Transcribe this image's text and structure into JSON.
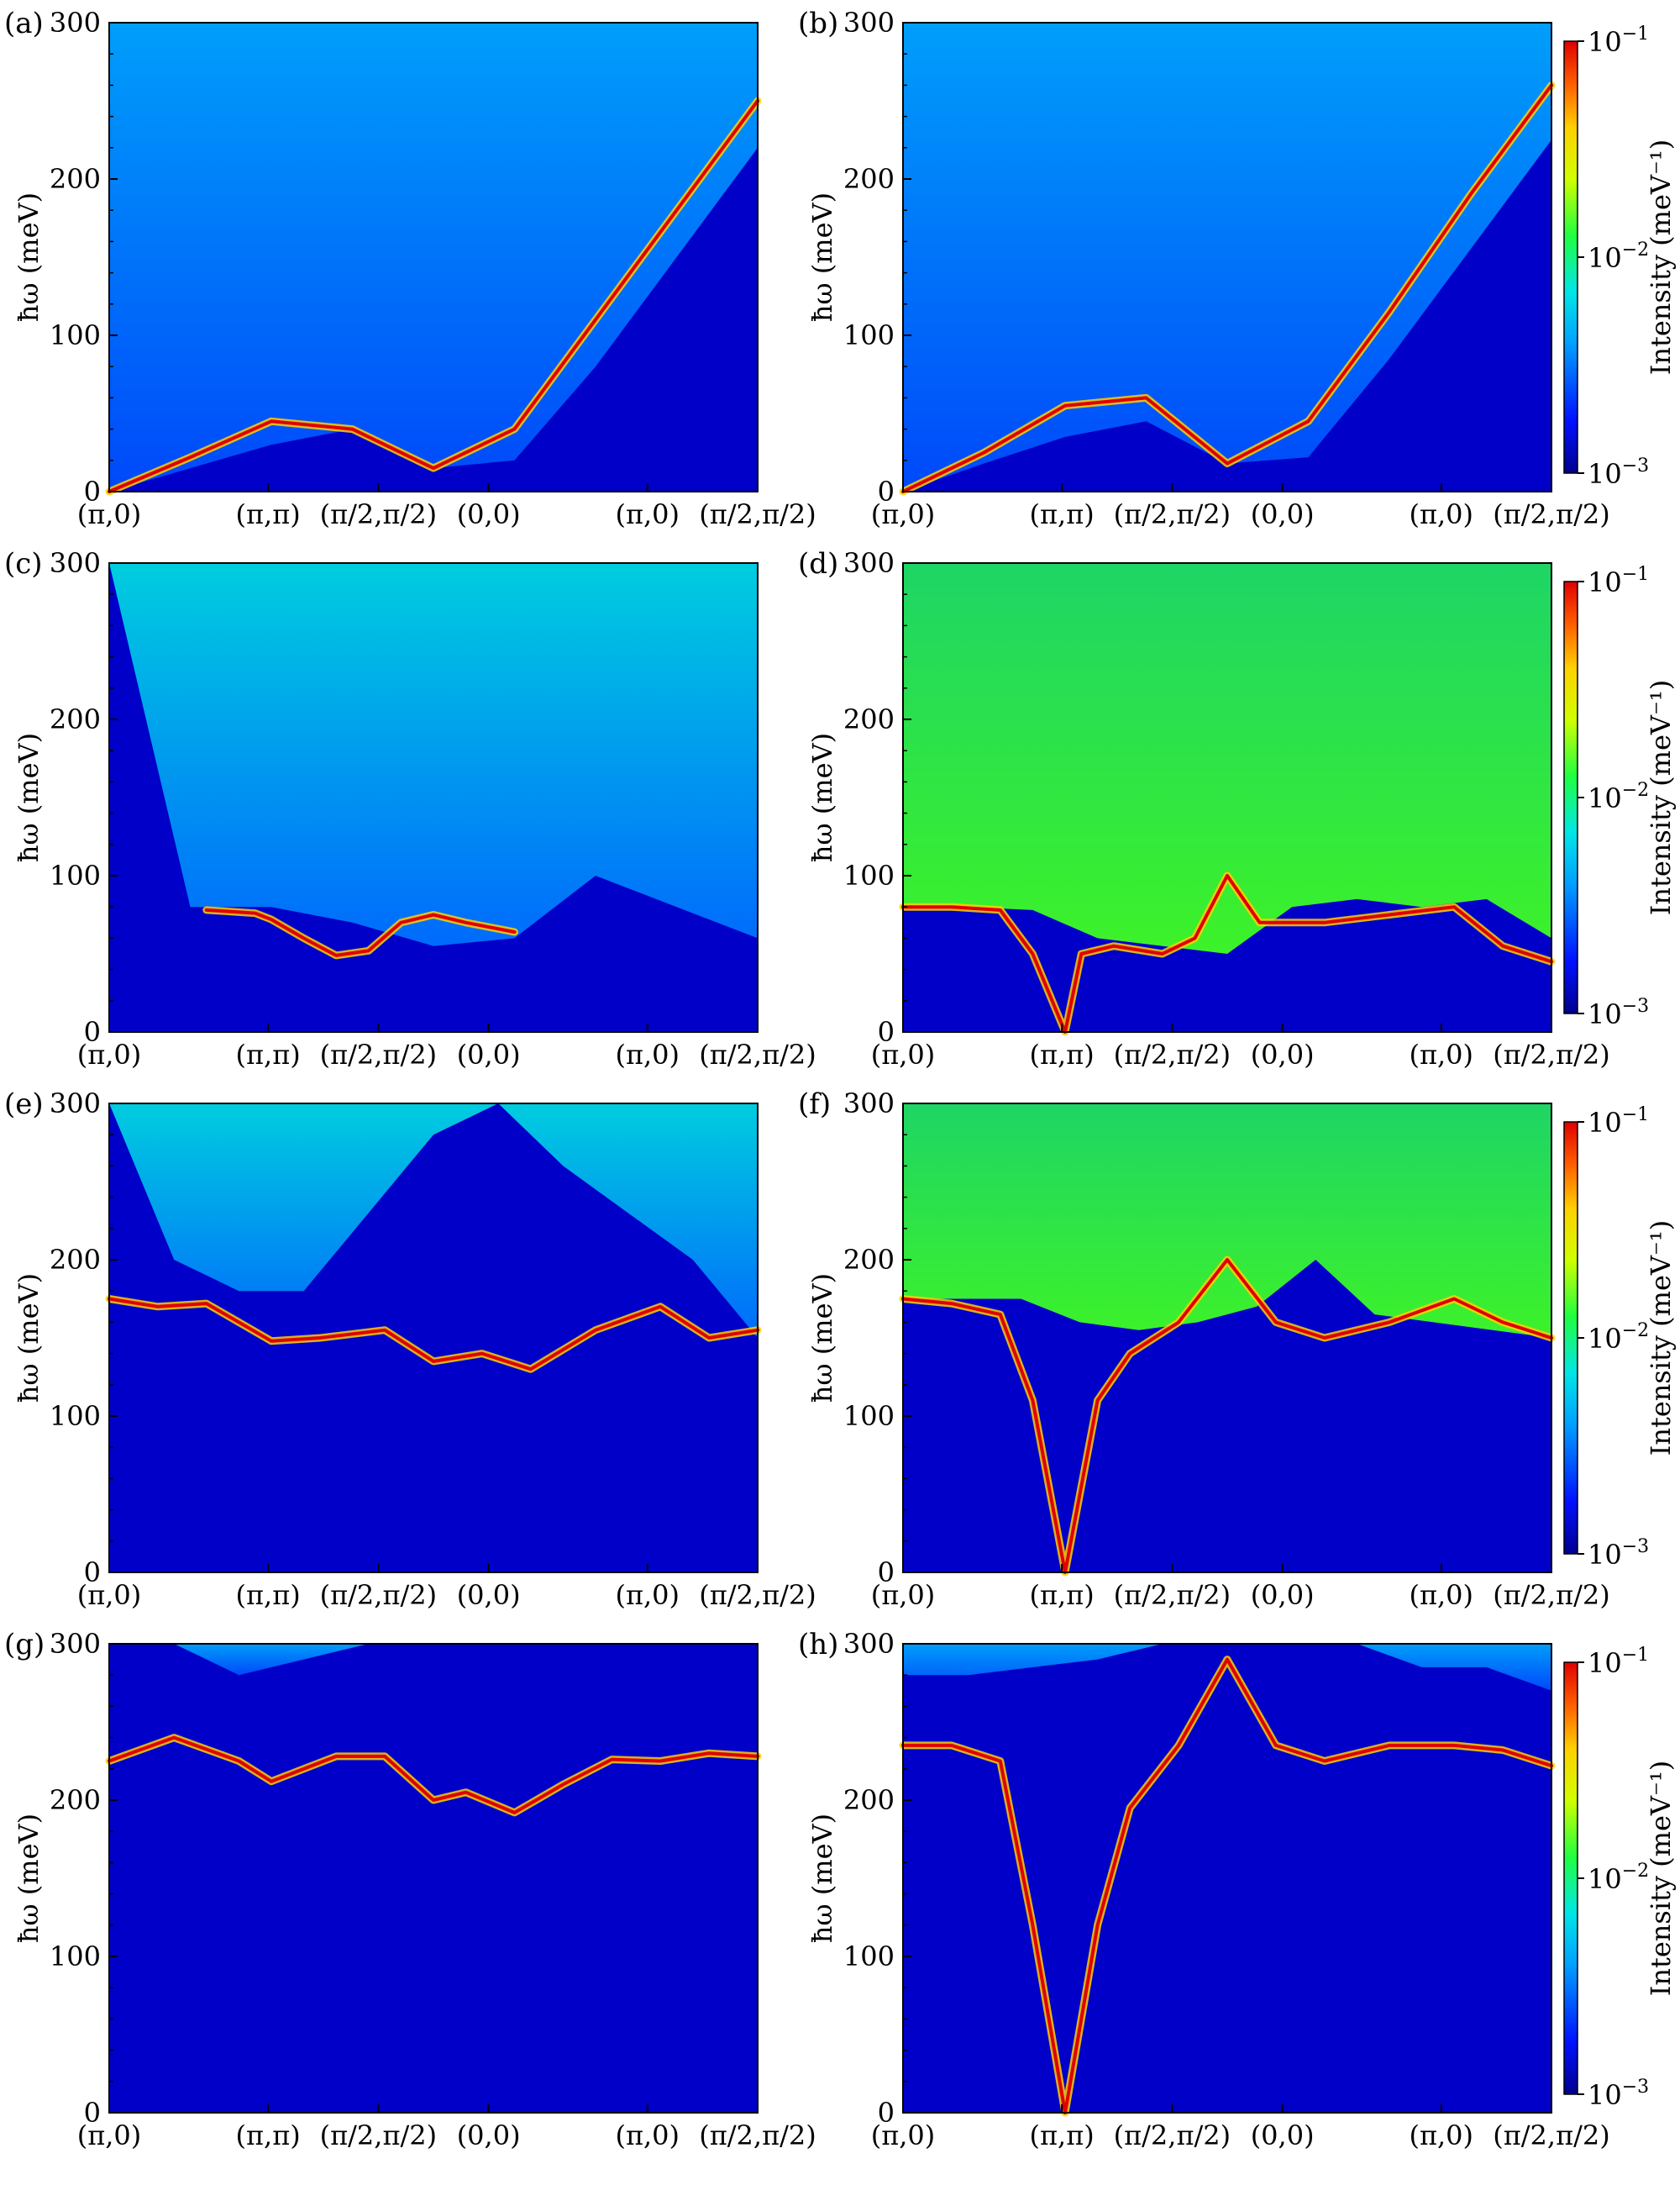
{
  "colors": {
    "background_low": "#0000c8",
    "colormap": [
      "#00008f",
      "#0010ff",
      "#00a0ff",
      "#00e6e6",
      "#20ff40",
      "#d0ff00",
      "#ffd000",
      "#ff6000",
      "#e00000"
    ]
  },
  "colorbar": {
    "label": "Intensity (meV⁻¹)",
    "scale": "log",
    "range": [
      0.001,
      0.1
    ],
    "ticks": [
      {
        "base": "10",
        "exp": "−1",
        "value": 0.1
      },
      {
        "base": "10",
        "exp": "−2",
        "value": 0.01
      },
      {
        "base": "10",
        "exp": "−3",
        "value": 0.001
      }
    ]
  },
  "chart_data": [
    {
      "panel": "(a)",
      "type": "heatmap",
      "ylabel": "ħω (meV)",
      "ylim": [
        0,
        300
      ],
      "yticks": [
        "0",
        "100",
        "200",
        "300"
      ],
      "xticks": [
        "(π,0)",
        "(π,π)",
        "(π/2,π/2)",
        "(0,0)",
        "(π,0)",
        "(π/2,π/2)"
      ],
      "bands": [
        {
          "path_x": [
            0,
            0.5,
            1.0,
            1.5,
            2.0,
            2.5,
            3.0,
            3.5,
            4.0
          ],
          "energy": [
            0,
            22,
            45,
            40,
            15,
            40,
            110,
            180,
            250
          ]
        }
      ],
      "continuum_onset": [
        0,
        15,
        30,
        40,
        15,
        20,
        80,
        150,
        220
      ],
      "continuum_level": "low"
    },
    {
      "panel": "(b)",
      "type": "heatmap",
      "ylabel": "ħω (meV)",
      "ylim": [
        0,
        300
      ],
      "yticks": [
        "0",
        "100",
        "200",
        "300"
      ],
      "xticks": [
        "(π,0)",
        "(π,π)",
        "(π/2,π/2)",
        "(0,0)",
        "(π,0)",
        "(π/2,π/2)"
      ],
      "bands": [
        {
          "path_x": [
            0,
            0.5,
            1.0,
            1.5,
            2.0,
            2.5,
            3.0,
            3.5,
            4.0
          ],
          "energy": [
            0,
            25,
            55,
            60,
            18,
            45,
            115,
            190,
            260
          ]
        }
      ],
      "continuum_onset": [
        0,
        18,
        35,
        45,
        18,
        22,
        85,
        155,
        225
      ],
      "continuum_level": "low"
    },
    {
      "panel": "(c)",
      "type": "heatmap",
      "ylabel": "ħω (meV)",
      "ylim": [
        0,
        300
      ],
      "yticks": [
        "0",
        "100",
        "200",
        "300"
      ],
      "xticks": [
        "(π,0)",
        "(π,π)",
        "(π/2,π/2)",
        "(0,0)",
        "(π,0)",
        "(π/2,π/2)"
      ],
      "bands": [
        {
          "path_x": [
            0.6,
            0.9,
            1.0,
            1.2,
            1.4,
            1.6,
            1.8,
            2.0,
            2.2,
            2.5
          ],
          "energy": [
            78,
            76,
            72,
            60,
            49,
            52,
            70,
            75,
            70,
            64
          ]
        }
      ],
      "continuum_onset": [
        300,
        80,
        80,
        70,
        55,
        60,
        100,
        80,
        60
      ],
      "continuum_level": "medium"
    },
    {
      "panel": "(d)",
      "type": "heatmap",
      "ylabel": "ħω (meV)",
      "ylim": [
        0,
        300
      ],
      "yticks": [
        "0",
        "100",
        "200",
        "300"
      ],
      "xticks": [
        "(π,0)",
        "(π,π)",
        "(π/2,π/2)",
        "(0,0)",
        "(π,0)",
        "(π/2,π/2)"
      ],
      "bands": [
        {
          "path_x": [
            0,
            0.3,
            0.6,
            0.8,
            1.0,
            1.1,
            1.3,
            1.6,
            1.8,
            2.0,
            2.2,
            2.6,
            3.0,
            3.4,
            3.7,
            4.0
          ],
          "energy": [
            80,
            80,
            78,
            50,
            0,
            50,
            55,
            50,
            60,
            100,
            70,
            70,
            75,
            80,
            55,
            45
          ]
        }
      ],
      "continuum_onset": [
        80,
        80,
        78,
        60,
        55,
        50,
        80,
        85,
        80,
        85,
        60
      ],
      "continuum_level": "high"
    },
    {
      "panel": "(e)",
      "type": "heatmap",
      "ylabel": "ħω (meV)",
      "ylim": [
        0,
        300
      ],
      "yticks": [
        "0",
        "100",
        "200",
        "300"
      ],
      "xticks": [
        "(π,0)",
        "(π,π)",
        "(π/2,π/2)",
        "(0,0)",
        "(π,0)",
        "(π/2,π/2)"
      ],
      "bands": [
        {
          "path_x": [
            0,
            0.3,
            0.6,
            1.0,
            1.3,
            1.7,
            2.0,
            2.3,
            2.6,
            3.0,
            3.4,
            3.7,
            4.0
          ],
          "energy": [
            175,
            170,
            172,
            148,
            150,
            155,
            135,
            140,
            130,
            155,
            170,
            150,
            155
          ]
        }
      ],
      "continuum_onset": [
        300,
        200,
        180,
        180,
        230,
        280,
        300,
        260,
        230,
        200,
        150
      ],
      "continuum_level": "medium"
    },
    {
      "panel": "(f)",
      "type": "heatmap",
      "ylabel": "ħω (meV)",
      "ylim": [
        0,
        300
      ],
      "yticks": [
        "0",
        "100",
        "200",
        "300"
      ],
      "xticks": [
        "(π,0)",
        "(π,π)",
        "(π/2,π/2)",
        "(0,0)",
        "(π,0)",
        "(π/2,π/2)"
      ],
      "bands": [
        {
          "path_x": [
            0,
            0.3,
            0.6,
            0.8,
            1.0,
            1.2,
            1.4,
            1.7,
            2.0,
            2.3,
            2.6,
            3.0,
            3.4,
            3.7,
            4.0
          ],
          "energy": [
            175,
            172,
            165,
            110,
            0,
            110,
            140,
            160,
            200,
            160,
            150,
            160,
            175,
            160,
            150
          ]
        }
      ],
      "continuum_onset": [
        175,
        175,
        175,
        160,
        155,
        160,
        170,
        200,
        165,
        160,
        155,
        150
      ],
      "continuum_level": "high"
    },
    {
      "panel": "(g)",
      "type": "heatmap",
      "ylabel": "ħω (meV)",
      "ylim": [
        0,
        300
      ],
      "yticks": [
        "0",
        "100",
        "200",
        "300"
      ],
      "xticks": [
        "(π,0)",
        "(π,π)",
        "(π/2,π/2)",
        "(0,0)",
        "(π,0)",
        "(π/2,π/2)"
      ],
      "bands": [
        {
          "path_x": [
            0,
            0.4,
            0.8,
            1.0,
            1.4,
            1.7,
            2.0,
            2.2,
            2.5,
            2.8,
            3.1,
            3.4,
            3.7,
            4.0
          ],
          "energy": [
            225,
            240,
            225,
            212,
            228,
            228,
            200,
            205,
            192,
            210,
            226,
            225,
            230,
            228
          ]
        }
      ],
      "continuum_onset": [
        300,
        300,
        280,
        290,
        300,
        300,
        300,
        300,
        300,
        300,
        300
      ],
      "continuum_level": "low"
    },
    {
      "panel": "(h)",
      "type": "heatmap",
      "ylabel": "ħω (meV)",
      "ylim": [
        0,
        300
      ],
      "yticks": [
        "0",
        "100",
        "200",
        "300"
      ],
      "xticks": [
        "(π,0)",
        "(π,π)",
        "(π/2,π/2)",
        "(0,0)",
        "(π,0)",
        "(π/2,π/2)"
      ],
      "bands": [
        {
          "path_x": [
            0,
            0.3,
            0.6,
            0.8,
            1.0,
            1.2,
            1.4,
            1.7,
            2.0,
            2.3,
            2.6,
            3.0,
            3.4,
            3.7,
            4.0
          ],
          "energy": [
            235,
            235,
            225,
            120,
            0,
            120,
            195,
            235,
            290,
            235,
            225,
            235,
            235,
            232,
            222
          ]
        }
      ],
      "continuum_onset": [
        280,
        280,
        285,
        290,
        300,
        300,
        300,
        300,
        285,
        285,
        270
      ],
      "continuum_level": "low"
    }
  ]
}
